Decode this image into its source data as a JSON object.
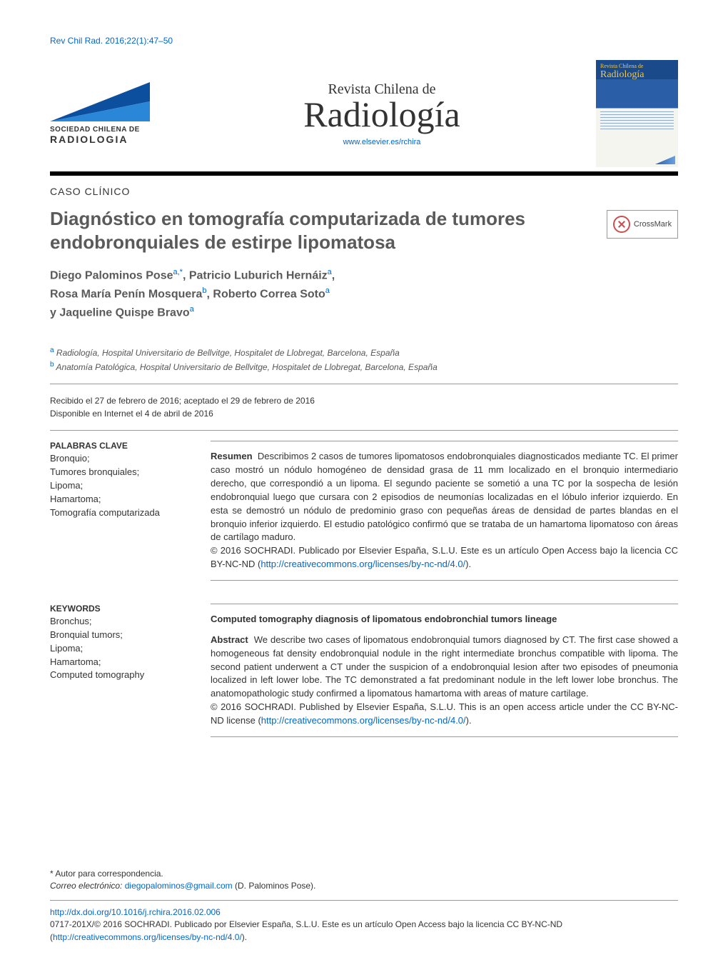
{
  "citation": "Rev Chil Rad. 2016;22(1):47–50",
  "publisher": {
    "line1": "SOCIEDAD CHILENA DE",
    "line2": "RADIOLOGIA",
    "logo_colors": {
      "top": "#0b4f9e",
      "bottom": "#2a87d8"
    }
  },
  "journal": {
    "small": "Revista Chilena de",
    "large": "Radiología",
    "url": "www.elsevier.es/rchira"
  },
  "cover": {
    "title_small": "Revista Chilena de",
    "title_large": "Radiología"
  },
  "section_label": "CASO CLÍNICO",
  "article_title": "Diagnóstico en tomografía computarizada de tumores endobronquiales de estirpe lipomatosa",
  "crossmark_label": "CrossMark",
  "authors_html": "Diego Palominos Pose<sup>a,*</sup>, Patricio Luburich Hernáiz<sup>a</sup>,<br>Rosa María Penín Mosquera<sup>b</sup>, Roberto Correa Soto<sup>a</sup><br>y Jaqueline Quispe Bravo<sup>a</sup>",
  "affiliations": {
    "a": "Radiología, Hospital Universitario de Bellvitge, Hospitalet de Llobregat, Barcelona, España",
    "b": "Anatomía Patológica, Hospital Universitario de Bellvitge, Hospitalet de Llobregat, Barcelona, España"
  },
  "dates": {
    "received_accepted": "Recibido el 27 de febrero de 2016; aceptado el 29 de febrero de 2016",
    "online": "Disponible en Internet el 4 de abril de 2016"
  },
  "es": {
    "kw_head": "PALABRAS CLAVE",
    "keywords": [
      "Bronquio;",
      "Tumores bronquiales;",
      "Lipoma;",
      "Hamartoma;",
      "Tomografía computarizada"
    ],
    "runin": "Resumen",
    "body": "Describimos 2 casos de tumores lipomatosos endobronquiales diagnosticados mediante TC. El primer caso mostró un nódulo homogéneo de densidad grasa de 11 mm localizado en el bronquio intermediario derecho, que correspondió a un lipoma. El segundo paciente se sometió a una TC por la sospecha de lesión endobronquial luego que cursara con 2 episodios de neumonías localizadas en el lóbulo inferior izquierdo. En esta se demostró un nódulo de predominio graso con pequeñas áreas de densidad de partes blandas en el bronquio inferior izquierdo. El estudio patológico confirmó que se trataba de un hamartoma lipomatoso con áreas de cartílago maduro.",
    "license_prefix": "© 2016 SOCHRADI. Publicado por Elsevier España, S.L.U. Este es un artículo Open Access bajo la licencia CC BY-NC-ND (",
    "license_url": "http://creativecommons.org/licenses/by-nc-nd/4.0/",
    "license_suffix": ")."
  },
  "en": {
    "kw_head": "KEYWORDS",
    "keywords": [
      "Bronchus;",
      "Bronquial tumors;",
      "Lipoma;",
      "Hamartoma;",
      "Computed tomography"
    ],
    "title": "Computed tomography diagnosis of lipomatous endobronchial tumors lineage",
    "runin": "Abstract",
    "body": "We describe two cases of lipomatous endobronquial tumors diagnosed by CT. The first case showed a homogeneous fat density endobronquial nodule in the right intermediate bronchus compatible with lipoma. The second patient underwent a CT under the suspicion of a endobronquial lesion after two episodes of pneumonia localized in left lower lobe. The TC demonstrated a fat predominant nodule in the left lower lobe bronchus. The anatomopathologic study confirmed a lipomatous hamartoma with areas of mature cartilage.",
    "license_prefix": "© 2016 SOCHRADI. Published by Elsevier España, S.L.U. This is an open access article under the CC BY-NC-ND license (",
    "license_url": "http://creativecommons.org/licenses/by-nc-nd/4.0/",
    "license_suffix": ")."
  },
  "footer": {
    "corr_label": "* Autor para correspondencia.",
    "email_label": "Correo electrónico:",
    "email": "diegopalominos@gmail.com",
    "email_person": "(D. Palominos Pose).",
    "doi": "http://dx.doi.org/10.1016/j.rchira.2016.02.006",
    "copyright_prefix": "0717-201X/© 2016 SOCHRADI. Publicado por Elsevier España, S.L.U. Este es un artículo Open Access bajo la licencia CC BY-NC-ND (",
    "copyright_url": "http://creativecommons.org/licenses/by-nc-nd/4.0/",
    "copyright_suffix": ")."
  },
  "colors": {
    "link": "#0066cc",
    "text": "#333333",
    "heading": "#5a5a5a",
    "rule": "#999999",
    "crossmark_ring": "#c94f4f"
  }
}
